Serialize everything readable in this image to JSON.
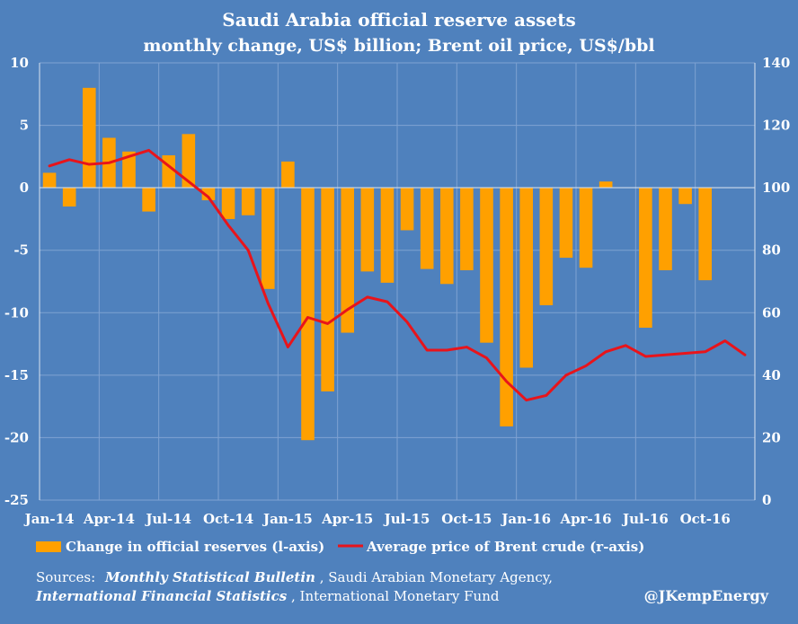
{
  "chart_data": {
    "type": "bar+line",
    "title": "Saudi Arabia official reserve assets",
    "subtitle": "monthly change, US$ billion; Brent oil price, US$/bbl",
    "left_axis": {
      "min": -25,
      "max": 10,
      "ticks": [
        "10",
        "5",
        "0",
        "-5",
        "-10",
        "-15",
        "-20",
        "-25"
      ],
      "tick_values": [
        10,
        5,
        0,
        -5,
        -10,
        -15,
        -20,
        -25
      ]
    },
    "right_axis": {
      "min": 0,
      "max": 140,
      "ticks": [
        "140",
        "120",
        "100",
        "80",
        "60",
        "40",
        "20",
        "0"
      ],
      "tick_values": [
        140,
        120,
        100,
        80,
        60,
        40,
        20,
        0
      ]
    },
    "x_tick_labels": [
      "Jan-14",
      "Apr-14",
      "Jul-14",
      "Oct-14",
      "Jan-15",
      "Apr-15",
      "Jul-15",
      "Oct-15",
      "Jan-16",
      "Apr-16",
      "Jul-16",
      "Oct-16"
    ],
    "x_tick_every": 3,
    "series": [
      {
        "name": "Change in official reserves (l-axis)",
        "type": "bar",
        "axis": "left",
        "color": "#FFA000",
        "values": [
          1.2,
          -1.5,
          8.0,
          4.0,
          2.9,
          -1.9,
          2.6,
          4.3,
          -1.0,
          -2.5,
          -2.2,
          -8.1,
          2.1,
          -20.2,
          -16.3,
          -11.6,
          -6.7,
          -7.6,
          -3.4,
          -6.5,
          -7.7,
          -6.6,
          -12.4,
          -19.1,
          -14.4,
          -9.4,
          -5.6,
          -6.4,
          0.5,
          0,
          -11.2,
          -6.6,
          -1.3,
          -7.4,
          0,
          0
        ]
      },
      {
        "name": "Average price of Brent crude (r-axis)",
        "type": "line",
        "axis": "right",
        "color": "#E8141B",
        "values": [
          107,
          109,
          107.5,
          108,
          110,
          112,
          107,
          102,
          97,
          88,
          80,
          63,
          49,
          58.5,
          56.5,
          61,
          65,
          63.5,
          57,
          48,
          48,
          49,
          45.5,
          38,
          32,
          33.5,
          40,
          43,
          47.5,
          49.5,
          46,
          46.5,
          47,
          47.5,
          51,
          46.5
        ]
      }
    ],
    "legend_position": "bottom"
  },
  "sources": {
    "label": "Sources:",
    "line1_italic": "Monthly Statistical Bulletin",
    "line1_rest": ", Saudi Arabian Monetary Agency,",
    "line2_italic": "International Financial Statistics",
    "line2_rest": ", International Monetary Fund"
  },
  "credit": "@JKempEnergy",
  "colors": {
    "background": "#4F81BD",
    "grid": "#7FA2D2",
    "axis": "#D9E3F0"
  }
}
